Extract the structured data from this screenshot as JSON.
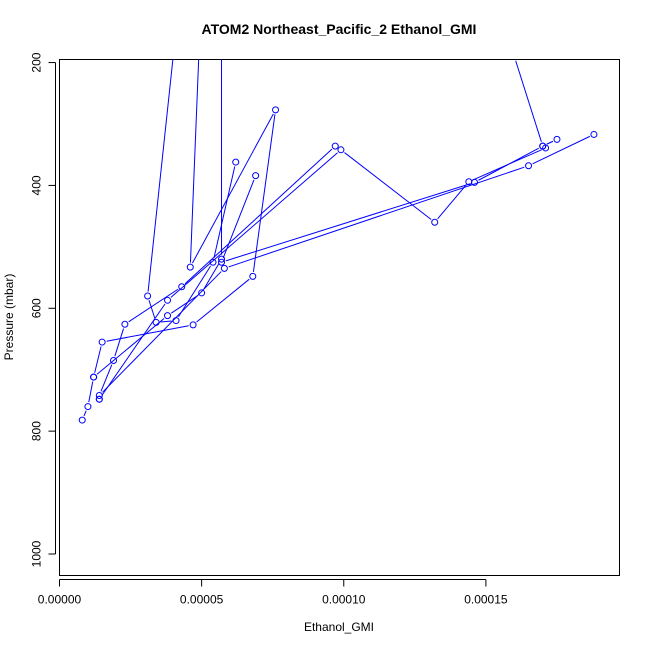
{
  "chart_data": {
    "type": "line",
    "title": "ATOM2 Northeast_Pacific_2 Ethanol_GMI",
    "xlabel": "Ethanol_GMI",
    "ylabel": "Pressure (mbar)",
    "xlim": [
      0.0,
      0.000197
    ],
    "ylim": [
      1035,
      195
    ],
    "x_ticks": [
      0.0,
      5e-05,
      0.0001,
      0.00015
    ],
    "x_tick_labels": [
      "0.00000",
      "0.00005",
      "0.00010",
      "0.00015"
    ],
    "y_ticks": [
      200,
      400,
      600,
      800,
      1000
    ],
    "y_tick_labels": [
      "200",
      "400",
      "600",
      "800",
      "1000"
    ],
    "grid": false,
    "color": "#0000ff",
    "series": [
      {
        "x": [
          4e-05,
          3.1e-05,
          3.4e-05,
          4.1e-05,
          5.4e-05,
          6.2e-05
        ],
        "y": [
          190,
          580,
          623,
          620,
          525,
          362
        ]
      },
      {
        "x": [
          5.7e-05,
          5.7e-05,
          5e-05,
          3.8e-05,
          1.2e-05,
          1e-05,
          8e-06
        ],
        "y": [
          190,
          520,
          575,
          612,
          712,
          760,
          782
        ]
      },
      {
        "x": [
          4.9e-05,
          4.6e-05,
          7.6e-05,
          6.8e-05,
          4.7e-05,
          1.5e-05,
          1.2e-05
        ],
        "y": [
          190,
          533,
          277,
          548,
          627,
          655,
          712
        ]
      },
      {
        "x": [
          1.4e-05,
          1.4e-05,
          3.8e-05,
          9.9e-05,
          0.000132,
          0.000144,
          0.000171
        ],
        "y": [
          748,
          748,
          587,
          342,
          460,
          394,
          339
        ]
      },
      {
        "x": [
          9.7e-05,
          4.3e-05,
          2.3e-05,
          1.9e-05,
          1.4e-05,
          5.8e-05,
          0.000165,
          0.000188
        ],
        "y": [
          336,
          565,
          626,
          685,
          742,
          535,
          368,
          317
        ]
      },
      {
        "x": [
          6.9e-05,
          5.7e-05,
          0.000146,
          0.00017,
          0.000175,
          0.00017,
          0.00016
        ],
        "y": [
          384,
          525,
          395,
          336,
          325,
          336,
          190
        ]
      }
    ]
  }
}
